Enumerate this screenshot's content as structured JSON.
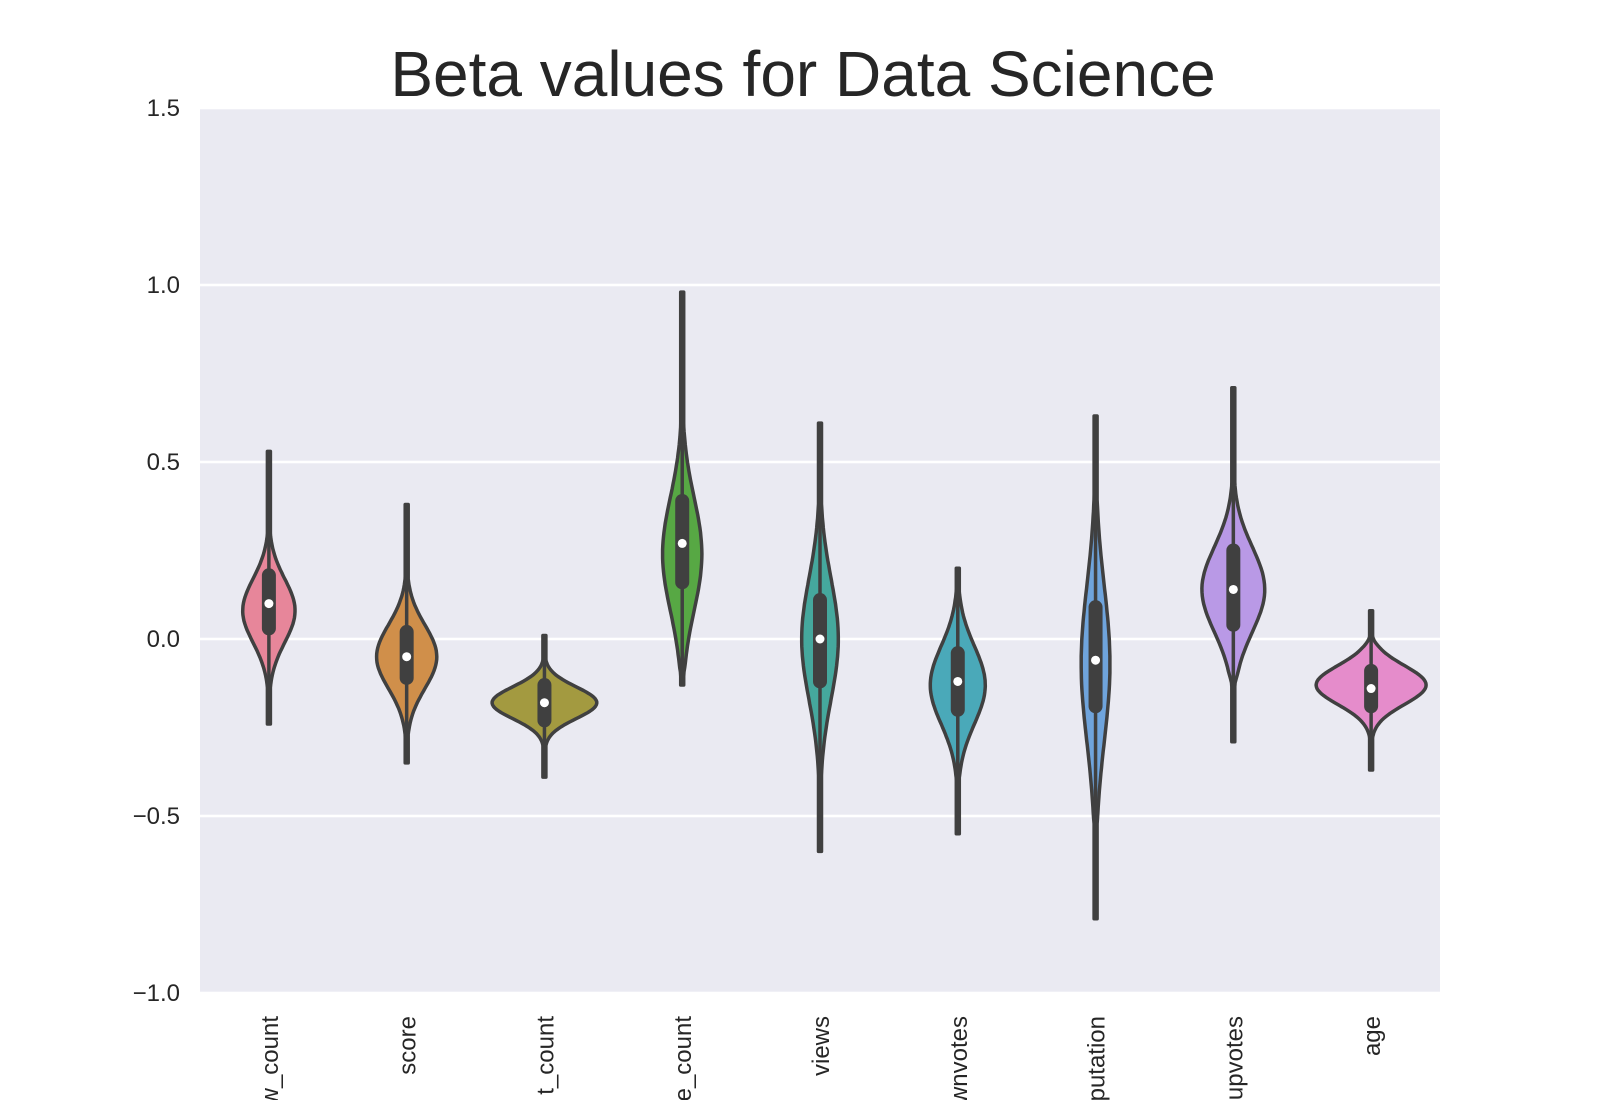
{
  "chart_data": {
    "type": "violin",
    "title": "Beta values for Data Science",
    "xlabel": "",
    "ylabel": "",
    "ylim": [
      -1.0,
      1.5
    ],
    "yticks": [
      -1.0,
      -0.5,
      0.0,
      0.5,
      1.0,
      1.5
    ],
    "ytick_labels": [
      "−1.0",
      "−0.5",
      "0.0",
      "0.5",
      "1.0",
      "1.5"
    ],
    "grid": true,
    "legend": "none",
    "categories": [
      "w_count",
      "score",
      "t_count",
      "e_count",
      "views",
      "wnvotes",
      "putation",
      "upvotes",
      "age"
    ],
    "violins": [
      {
        "category": "w_count",
        "color": "#e7869a",
        "whisker": [
          -0.24,
          0.53
        ],
        "q1": 0.03,
        "q3": 0.18,
        "median": 0.1,
        "mode": 0.08,
        "width": 0.4,
        "spread": 0.09,
        "tail_top": 0.37,
        "tail_bottom": -0.17
      },
      {
        "category": "score",
        "color": "#d08f4a",
        "whisker": [
          -0.35,
          0.38
        ],
        "q1": -0.11,
        "q3": 0.02,
        "median": -0.05,
        "mode": -0.05,
        "width": 0.46,
        "spread": 0.09,
        "tail_top": 0.19,
        "tail_bottom": -0.28
      },
      {
        "category": "t_count",
        "color": "#a39a40",
        "whisker": [
          -0.39,
          0.01
        ],
        "q1": -0.23,
        "q3": -0.13,
        "median": -0.18,
        "mode": -0.18,
        "width": 0.8,
        "spread": 0.045,
        "tail_top": -0.05,
        "tail_bottom": -0.33
      },
      {
        "category": "e_count",
        "color": "#57a844",
        "whisker": [
          -0.13,
          0.98
        ],
        "q1": 0.16,
        "q3": 0.39,
        "median": 0.27,
        "mode": 0.24,
        "width": 0.3,
        "spread": 0.16,
        "tail_top": 0.66,
        "tail_bottom": -0.07
      },
      {
        "category": "views",
        "color": "#45a89d",
        "whisker": [
          -0.6,
          0.61
        ],
        "q1": -0.12,
        "q3": 0.11,
        "median": 0.0,
        "mode": 0.0,
        "width": 0.28,
        "spread": 0.17,
        "tail_top": 0.38,
        "tail_bottom": -0.39
      },
      {
        "category": "wnvotes",
        "color": "#4aa9b9",
        "whisker": [
          -0.55,
          0.2
        ],
        "q1": -0.2,
        "q3": -0.04,
        "median": -0.12,
        "mode": -0.13,
        "width": 0.42,
        "spread": 0.11,
        "tail_top": 0.14,
        "tail_bottom": -0.38
      },
      {
        "category": "putation",
        "color": "#6fa4dc",
        "whisker": [
          -0.79,
          0.63
        ],
        "q1": -0.19,
        "q3": 0.09,
        "median": -0.06,
        "mode": -0.07,
        "width": 0.22,
        "spread": 0.22,
        "tail_top": 0.43,
        "tail_bottom": -0.5
      },
      {
        "category": "upvotes",
        "color": "#b999e6",
        "whisker": [
          -0.29,
          0.71
        ],
        "q1": 0.04,
        "q3": 0.25,
        "median": 0.14,
        "mode": 0.14,
        "width": 0.48,
        "spread": 0.12,
        "tail_top": 0.45,
        "tail_bottom": -0.09
      },
      {
        "category": "age",
        "color": "#e58ccb",
        "whisker": [
          -0.37,
          0.08
        ],
        "q1": -0.19,
        "q3": -0.09,
        "median": -0.14,
        "mode": -0.13,
        "width": 0.84,
        "spread": 0.055,
        "tail_top": -0.03,
        "tail_bottom": -0.28
      }
    ]
  },
  "style": {
    "axes_background": "#eaeaf2",
    "grid_color": "#ffffff",
    "outline_color": "#404040",
    "median_color": "#ffffff"
  }
}
